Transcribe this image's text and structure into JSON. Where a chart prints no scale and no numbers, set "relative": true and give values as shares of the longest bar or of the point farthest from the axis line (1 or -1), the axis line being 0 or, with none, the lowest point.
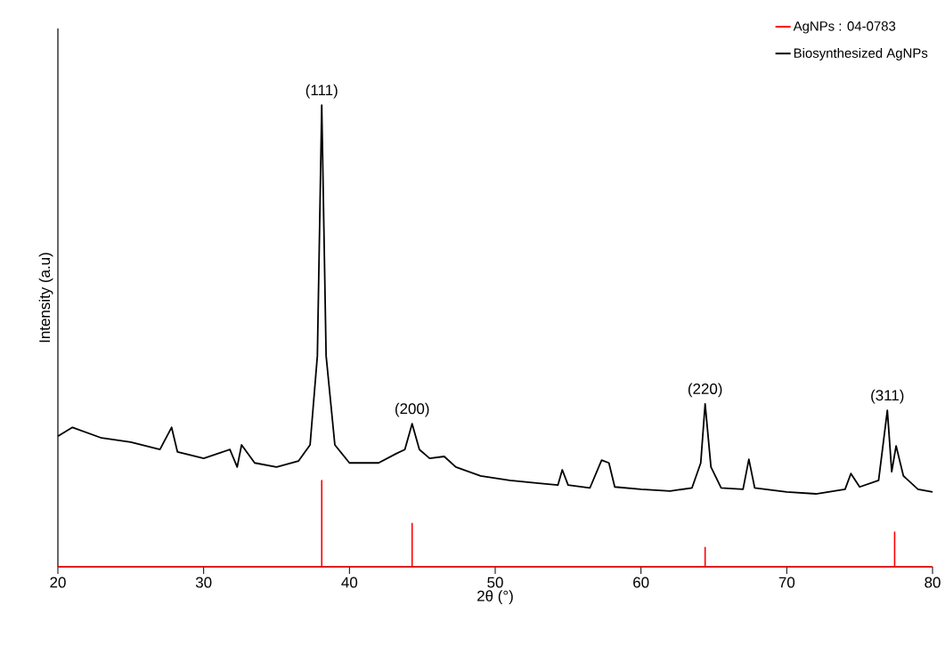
{
  "chart_data": {
    "type": "line",
    "relative": true,
    "xlabel": "2θ (°)",
    "ylabel": "Intensity (a.u)",
    "xlim": [
      20,
      80
    ],
    "xticks": [
      20,
      30,
      40,
      50,
      60,
      70,
      80
    ],
    "legend": "top right",
    "series": [
      {
        "name": "AgNPs : 04-0783",
        "color": "#ff0000",
        "x": [
          20,
          38.1,
          38.1,
          38.1,
          44.3,
          44.3,
          44.3,
          64.4,
          64.4,
          64.4,
          77.4,
          77.4,
          77.4,
          80
        ],
        "values": [
          0,
          0,
          0.187,
          0,
          0,
          0.094,
          0,
          0,
          0.042,
          0,
          0,
          0.075,
          0,
          0
        ]
      },
      {
        "name": "Biosynthesized AgNPs",
        "color": "#000000",
        "x": [
          20,
          21,
          23,
          25,
          27,
          27.8,
          28.2,
          30,
          31.8,
          32.3,
          32.6,
          33.5,
          35,
          36.5,
          37.3,
          37.8,
          38.1,
          38.4,
          39,
          40,
          42,
          43.2,
          43.8,
          44.3,
          44.8,
          45.5,
          46.5,
          47.3,
          49,
          51,
          53,
          54.3,
          54.6,
          55,
          56.5,
          57.3,
          57.8,
          58.2,
          60,
          62,
          63.5,
          64.1,
          64.4,
          64.8,
          65.5,
          67,
          67.4,
          67.8,
          70,
          72,
          74,
          74.4,
          75,
          76.3,
          76.9,
          77.2,
          77.5,
          78,
          79,
          80
        ],
        "values": [
          0.283,
          0.302,
          0.279,
          0.27,
          0.254,
          0.302,
          0.249,
          0.235,
          0.254,
          0.216,
          0.264,
          0.225,
          0.216,
          0.229,
          0.264,
          0.457,
          1,
          0.457,
          0.264,
          0.225,
          0.225,
          0.245,
          0.254,
          0.31,
          0.254,
          0.235,
          0.239,
          0.216,
          0.197,
          0.187,
          0.181,
          0.177,
          0.21,
          0.177,
          0.171,
          0.231,
          0.225,
          0.173,
          0.168,
          0.164,
          0.171,
          0.225,
          0.353,
          0.216,
          0.171,
          0.168,
          0.233,
          0.171,
          0.162,
          0.158,
          0.168,
          0.202,
          0.173,
          0.187,
          0.339,
          0.206,
          0.262,
          0.197,
          0.168,
          0.162
        ]
      }
    ],
    "annotations": [
      {
        "text": "(111)",
        "x": 38.1,
        "y": 1
      },
      {
        "text": "(200)",
        "x": 44.3,
        "y": 0.31
      },
      {
        "text": "(220)",
        "x": 64.4,
        "y": 0.353
      },
      {
        "text": "(311)",
        "x": 76.9,
        "y": 0.339
      }
    ]
  }
}
